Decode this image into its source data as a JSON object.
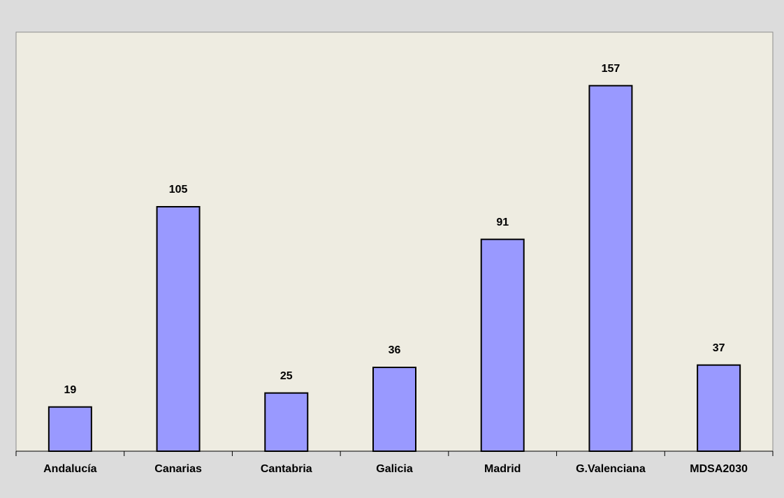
{
  "chart_data": {
    "type": "bar",
    "categories": [
      "Andalucía",
      "Canarias",
      "Cantabria",
      "Galicia",
      "Madrid",
      "G.Valenciana",
      "MDSA2030"
    ],
    "values": [
      19,
      105,
      25,
      36,
      91,
      157,
      37
    ],
    "color": "#9999ff",
    "ylim": [
      0,
      180
    ]
  }
}
